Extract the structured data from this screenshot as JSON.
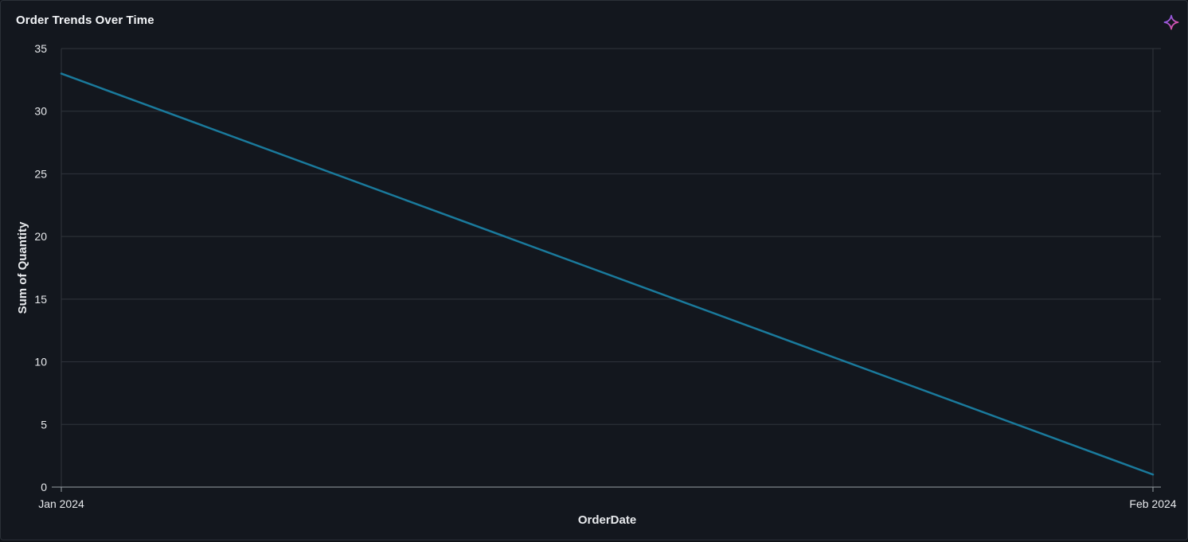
{
  "card": {
    "title": "Order Trends Over Time",
    "icon": "sparkle-icon"
  },
  "colors": {
    "background": "#13171e",
    "grid": "#30353c",
    "axis": "#9aa0a6",
    "line": "#1a7a9c",
    "sparkle_start": "#6a5cff",
    "sparkle_end": "#ff4f8b"
  },
  "chart_data": {
    "type": "line",
    "title": "Order Trends Over Time",
    "xlabel": "OrderDate",
    "ylabel": "Sum of Quantity",
    "x": [
      "Jan 2024",
      "Feb 2024"
    ],
    "series": [
      {
        "values": [
          33,
          1
        ]
      }
    ],
    "ylim": [
      0,
      35
    ],
    "yticks": [
      0,
      5,
      10,
      15,
      20,
      25,
      30,
      35
    ],
    "grid": true,
    "legend": "none"
  }
}
